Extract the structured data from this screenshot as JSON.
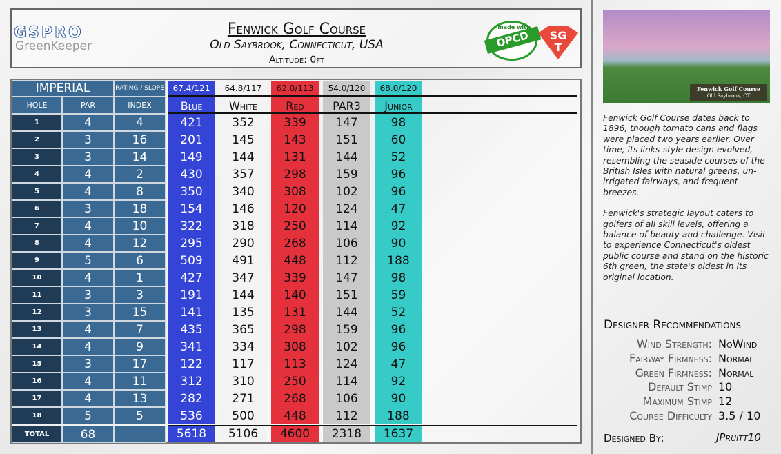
{
  "header": {
    "logo_top": "GSPRO",
    "logo_bottom": "GreenKeeper",
    "title": "Fenwick Golf Course",
    "subtitle": "Old Saybrook, Connecticut, USA",
    "altitude": "Altitude: 0ft",
    "badge_top": "made with",
    "badge_main": "OPCD",
    "sgt_top": "SG",
    "sgt_bottom": "T"
  },
  "table": {
    "system": "IMPERIAL",
    "rating_header": "RATING / SLOPE",
    "col_hole": "HOLE",
    "col_par": "PAR",
    "col_index": "INDEX",
    "tees": [
      {
        "name": "Blue",
        "rating": "67.4/121"
      },
      {
        "name": "White",
        "rating": "64.8/117"
      },
      {
        "name": "Red",
        "rating": "62.0/113"
      },
      {
        "name": "PAR3",
        "rating": "54.0/120"
      },
      {
        "name": "Junior",
        "rating": "68.0/120"
      }
    ],
    "holes": [
      {
        "hole": 1,
        "par": 4,
        "index": 4,
        "yards": [
          421,
          352,
          339,
          147,
          98
        ]
      },
      {
        "hole": 2,
        "par": 3,
        "index": 16,
        "yards": [
          201,
          145,
          143,
          151,
          60
        ]
      },
      {
        "hole": 3,
        "par": 3,
        "index": 14,
        "yards": [
          149,
          144,
          131,
          144,
          52
        ]
      },
      {
        "hole": 4,
        "par": 4,
        "index": 2,
        "yards": [
          430,
          357,
          298,
          159,
          96
        ]
      },
      {
        "hole": 5,
        "par": 4,
        "index": 8,
        "yards": [
          350,
          340,
          308,
          102,
          96
        ]
      },
      {
        "hole": 6,
        "par": 3,
        "index": 18,
        "yards": [
          154,
          146,
          120,
          124,
          47
        ]
      },
      {
        "hole": 7,
        "par": 4,
        "index": 10,
        "yards": [
          322,
          318,
          250,
          114,
          92
        ]
      },
      {
        "hole": 8,
        "par": 4,
        "index": 12,
        "yards": [
          295,
          290,
          268,
          106,
          90
        ]
      },
      {
        "hole": 9,
        "par": 5,
        "index": 6,
        "yards": [
          509,
          491,
          448,
          112,
          188
        ]
      },
      {
        "hole": 10,
        "par": 4,
        "index": 1,
        "yards": [
          427,
          347,
          339,
          147,
          98
        ]
      },
      {
        "hole": 11,
        "par": 3,
        "index": 3,
        "yards": [
          191,
          144,
          140,
          151,
          59
        ]
      },
      {
        "hole": 12,
        "par": 3,
        "index": 15,
        "yards": [
          141,
          135,
          131,
          144,
          52
        ]
      },
      {
        "hole": 13,
        "par": 4,
        "index": 7,
        "yards": [
          435,
          365,
          298,
          159,
          96
        ]
      },
      {
        "hole": 14,
        "par": 4,
        "index": 9,
        "yards": [
          341,
          334,
          308,
          102,
          96
        ]
      },
      {
        "hole": 15,
        "par": 3,
        "index": 17,
        "yards": [
          122,
          117,
          113,
          124,
          47
        ]
      },
      {
        "hole": 16,
        "par": 4,
        "index": 11,
        "yards": [
          312,
          310,
          250,
          114,
          92
        ]
      },
      {
        "hole": 17,
        "par": 4,
        "index": 13,
        "yards": [
          282,
          271,
          268,
          106,
          90
        ]
      },
      {
        "hole": 18,
        "par": 5,
        "index": 5,
        "yards": [
          536,
          500,
          448,
          112,
          188
        ]
      }
    ],
    "total": {
      "label": "TOTAL",
      "par": 68,
      "yards": [
        5618,
        5106,
        4600,
        2318,
        1637
      ]
    }
  },
  "sidebar": {
    "image_title": "Fenwick Golf Course",
    "image_subtitle": "Old Saybrook, CT",
    "paragraphs": [
      "Fenwick Golf Course dates back to 1896, though tomato cans and flags were placed two years earlier. Over time, its links-style design evolved, resembling the seaside courses of the British Isles with natural greens, un-irrigated fairways, and frequent breezes.",
      "Fenwick's strategic layout caters to golfers of all skill levels, offering a balance of beauty and challenge. Visit to experience Connecticut's oldest public course and stand on the historic 6th green, the state's oldest in its original location."
    ],
    "rec_title": "Designer Recommendations",
    "recs": [
      {
        "label": "Wind Strength:",
        "value": "NoWind"
      },
      {
        "label": "Fairway Firmness:",
        "value": "Normal"
      },
      {
        "label": "Green Firmness:",
        "value": "Normal"
      },
      {
        "label": "Default Stimp",
        "value": "10"
      },
      {
        "label": "Maximum Stimp",
        "value": "12"
      },
      {
        "label": "Course Difficulty",
        "value": "3.5 / 10"
      }
    ],
    "designed_by_label": "Designed By:",
    "designer": "JPruitt10"
  }
}
